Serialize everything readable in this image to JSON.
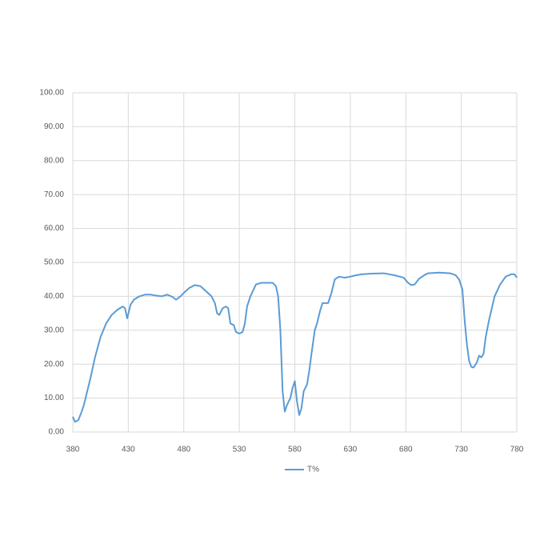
{
  "chart_data": {
    "type": "line",
    "x": [
      380,
      382,
      385,
      388,
      390,
      393,
      396,
      400,
      405,
      410,
      415,
      420,
      425,
      427,
      429,
      432,
      435,
      440,
      445,
      450,
      455,
      460,
      465,
      470,
      473,
      477,
      480,
      485,
      490,
      495,
      500,
      505,
      508,
      510,
      512,
      515,
      518,
      520,
      522,
      525,
      527,
      530,
      533,
      535,
      537,
      540,
      545,
      550,
      555,
      560,
      563,
      565,
      567,
      569,
      571,
      573,
      576,
      578,
      580,
      582,
      584,
      586,
      588,
      591,
      593,
      595,
      598,
      600,
      603,
      605,
      610,
      613,
      616,
      620,
      625,
      630,
      635,
      640,
      650,
      660,
      670,
      678,
      682,
      685,
      688,
      692,
      697,
      700,
      710,
      720,
      725,
      728,
      731,
      733,
      735,
      737,
      739,
      741,
      744,
      746,
      748,
      750,
      752,
      755,
      760,
      765,
      770,
      775,
      778,
      780
    ],
    "series": [
      {
        "name": "T%",
        "color": "#5b9bd5",
        "values": [
          4.5,
          3,
          3.5,
          6,
          8,
          12,
          16,
          22,
          28,
          32,
          34.5,
          36,
          37,
          36.5,
          33.5,
          37.5,
          39,
          40,
          40.5,
          40.5,
          40.2,
          40,
          40.5,
          39.8,
          39,
          40,
          41,
          42.5,
          43.3,
          43,
          41.5,
          40,
          38,
          35,
          34.5,
          36.5,
          37,
          36.5,
          32,
          31.5,
          29.5,
          29,
          29.5,
          32,
          37,
          40,
          43.5,
          44,
          44,
          44,
          43,
          40,
          30,
          12,
          6,
          8,
          10,
          13,
          15,
          9,
          5,
          7,
          12,
          14,
          18,
          23,
          30,
          32,
          36,
          38,
          38,
          41,
          45,
          45.8,
          45.5,
          45.8,
          46.2,
          46.5,
          46.7,
          46.8,
          46.2,
          45.5,
          44,
          43.3,
          43.5,
          45.2,
          46.3,
          46.8,
          47,
          46.8,
          46.2,
          45,
          42,
          33,
          26,
          21,
          19.2,
          19,
          20.5,
          22.5,
          22,
          23,
          28,
          33,
          40,
          43.5,
          45.8,
          46.5,
          46.5,
          45.5
        ]
      }
    ],
    "xlim": [
      380,
      780
    ],
    "xticks": [
      380,
      430,
      480,
      530,
      580,
      630,
      680,
      730,
      780
    ],
    "ylim": [
      0,
      100
    ],
    "yticks": [
      {
        "value": 0,
        "label": "0.00"
      },
      {
        "value": 10,
        "label": "10.00"
      },
      {
        "value": 20,
        "label": "20.00"
      },
      {
        "value": 30,
        "label": "30.00"
      },
      {
        "value": 40,
        "label": "40.00"
      },
      {
        "value": 50,
        "label": "50.00"
      },
      {
        "value": 60,
        "label": "60.00"
      },
      {
        "value": 70,
        "label": "70.00"
      },
      {
        "value": 80,
        "label": "80.00"
      },
      {
        "value": 90,
        "label": "90.00"
      },
      {
        "value": 100,
        "label": "100.00"
      }
    ],
    "grid": true
  }
}
